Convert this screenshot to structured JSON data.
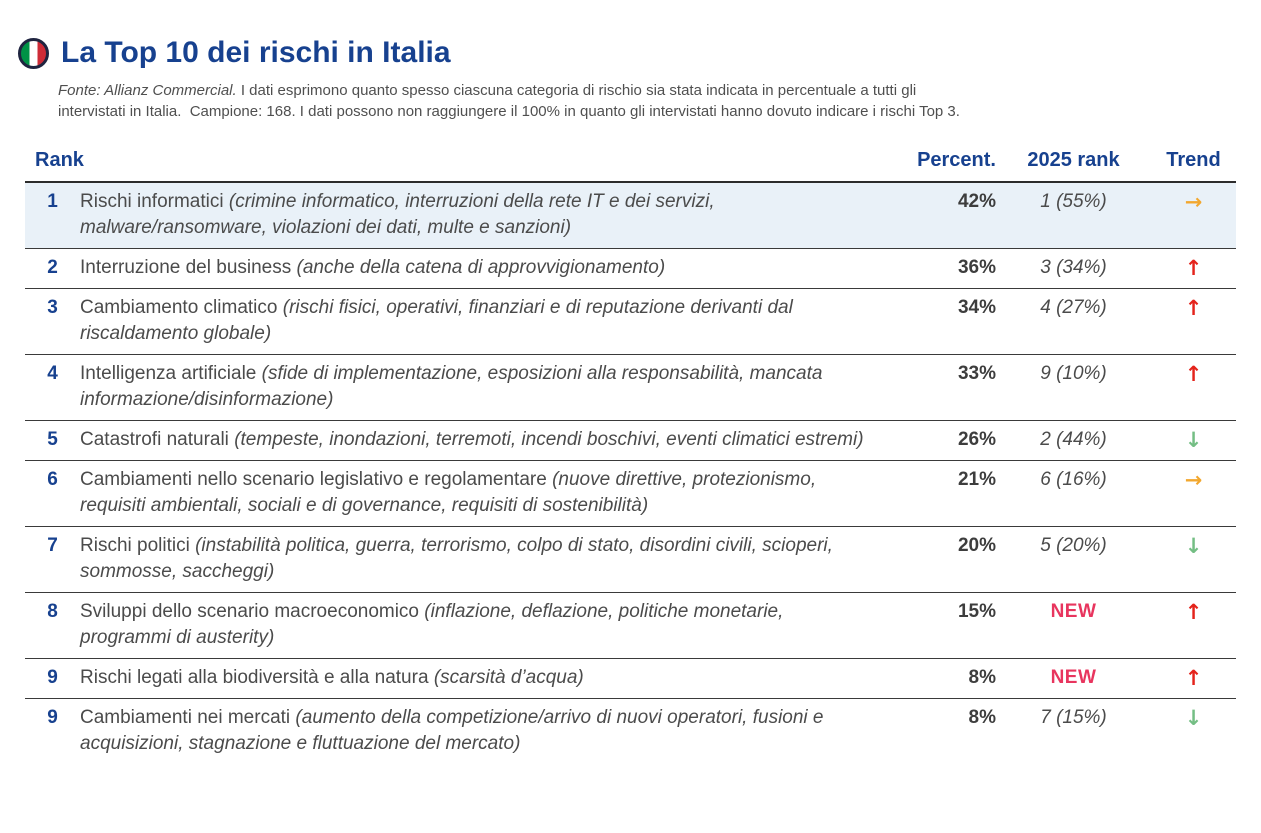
{
  "page": {
    "title": "La Top 10 dei rischi in Italia"
  },
  "subtitle": {
    "source_label": "Fonte: Allianz Commercial.",
    "line1_rest": " I dati esprimono quanto spesso ciascuna categoria di rischio sia stata indicata in percentuale a tutti gli",
    "line2": "intervistati in Italia.  Campione: 168. I dati possono non raggiungere il 100% in quanto gli intervistati hanno dovuto indicare i rischi Top 3."
  },
  "chart_data": {
    "type": "table",
    "title": "La Top 10 dei rischi in Italia",
    "columns": {
      "rank": "Rank",
      "percent": "Percent.",
      "rank2025": "2025 rank",
      "trend": "Trend"
    },
    "trend_icons": {
      "up": "↑",
      "down": "↓",
      "same": "→"
    },
    "rows": [
      {
        "rank": "1",
        "name": "Rischi informatici",
        "detail": "(crimine informatico, interruzioni della rete IT e dei servizi, malware/ransomware, violazioni dei dati, multe e sanzioni)",
        "percent": "42%",
        "rank2025": "1 (55%)",
        "trend": "same",
        "highlight": true
      },
      {
        "rank": "2",
        "name": "Interruzione del business",
        "detail": "(anche della catena di approvvigionamento)",
        "percent": "36%",
        "rank2025": "3 (34%)",
        "trend": "up",
        "highlight": false
      },
      {
        "rank": "3",
        "name": "Cambiamento climatico",
        "detail": "(rischi fisici, operativi, finanziari e di reputazione derivanti dal riscaldamento globale)",
        "percent": "34%",
        "rank2025": "4 (27%)",
        "trend": "up",
        "highlight": false
      },
      {
        "rank": "4",
        "name": "Intelligenza artificiale",
        "detail": "(sfide di implementazione, esposizioni alla responsabilità, mancata informazione/disinformazione)",
        "percent": "33%",
        "rank2025": "9 (10%)",
        "trend": "up",
        "highlight": false
      },
      {
        "rank": "5",
        "name": "Catastrofi naturali",
        "detail": "(tempeste, inondazioni, terremoti, incendi boschivi, eventi climatici estremi)",
        "percent": "26%",
        "rank2025": "2 (44%)",
        "trend": "down",
        "highlight": false
      },
      {
        "rank": "6",
        "name": "Cambiamenti nello scenario legislativo e regolamentare",
        "detail": "(nuove direttive, protezionismo, requisiti ambientali, sociali e di governance, requisiti di sostenibilità)",
        "percent": "21%",
        "rank2025": "6 (16%)",
        "trend": "same",
        "highlight": false
      },
      {
        "rank": "7",
        "name": "Rischi politici",
        "detail": "(instabilità politica, guerra, terrorismo, colpo di stato, disordini civili, scioperi, sommosse, saccheggi)",
        "percent": "20%",
        "rank2025": "5 (20%)",
        "trend": "down",
        "highlight": false
      },
      {
        "rank": "8",
        "name": "Sviluppi dello scenario macroeconomico",
        "detail": "(inflazione, deflazione, politiche monetarie, programmi di austerity)",
        "percent": "15%",
        "rank2025": "NEW",
        "trend": "up",
        "highlight": false
      },
      {
        "rank": "9",
        "name": "Rischi legati alla biodiversità e alla natura",
        "detail": "(scarsità d’acqua)",
        "percent": "8%",
        "rank2025": "NEW",
        "trend": "up",
        "highlight": false
      },
      {
        "rank": "9",
        "name": "Cambiamenti nei mercati",
        "detail": "(aumento della competizione/arrivo di nuovi operatori, fusioni e acquisizioni, stagnazione e fluttuazione del mercato)",
        "percent": "8%",
        "rank2025": "7 (15%)",
        "trend": "down",
        "highlight": false
      }
    ]
  },
  "colors": {
    "navy": "#17418F",
    "text_gray": "#4B4B4B",
    "highlight_row_bg": "#E9F1F8",
    "trend_up_red": "#E4231B",
    "trend_down_green": "#74BE84",
    "trend_same_amber": "#F2A72E",
    "new_pink": "#E8355E",
    "flag_green": "#009246",
    "flag_red": "#CE2B37"
  }
}
